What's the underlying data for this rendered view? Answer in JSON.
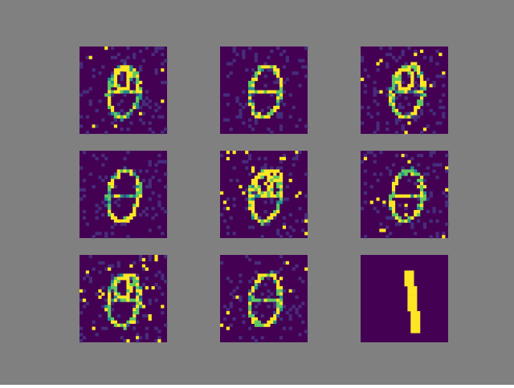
{
  "figure": {
    "background": "#808080",
    "colormap": [
      "#440154",
      "#3b528b",
      "#21918c",
      "#5ec962",
      "#fde725"
    ],
    "grid": {
      "rows": 3,
      "cols": 3
    }
  },
  "panels": [
    {
      "shape": "digit-8",
      "noise": "sparse",
      "variant": 0
    },
    {
      "shape": "digit-8",
      "noise": "none",
      "variant": 1
    },
    {
      "shape": "digit-8",
      "noise": "moderate",
      "variant": 2
    },
    {
      "shape": "digit-8",
      "noise": "none",
      "variant": 3
    },
    {
      "shape": "digit-8",
      "noise": "heavy",
      "variant": 4
    },
    {
      "shape": "digit-8",
      "noise": "moderate",
      "variant": 5
    },
    {
      "shape": "digit-8",
      "noise": "heavy",
      "variant": 6
    },
    {
      "shape": "digit-8",
      "noise": "sparse",
      "variant": 7
    },
    {
      "shape": "digit-1",
      "noise": "none",
      "variant": 8
    }
  ]
}
